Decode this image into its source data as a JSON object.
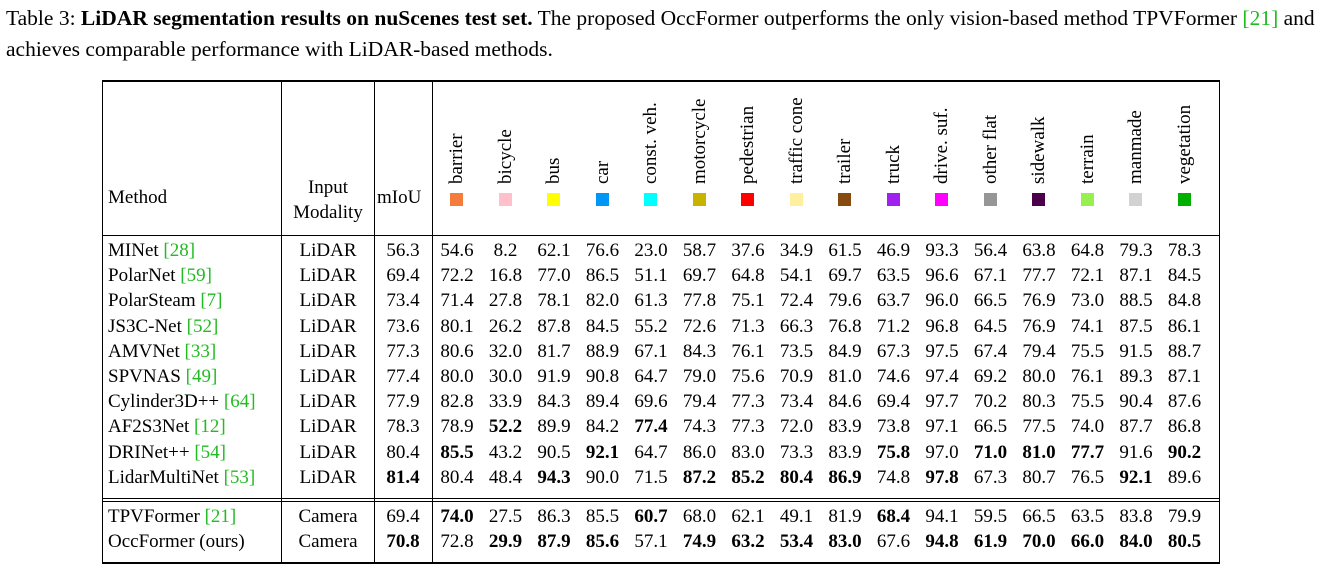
{
  "caption": {
    "label": "Table 3:",
    "title": "LiDAR segmentation results on nuScenes test set.",
    "text_a": "The proposed OccFormer outperforms the only vision-based method TPVFormer ",
    "cite_a": "[21]",
    "text_b": " and achieves comparable performance with LiDAR-based methods."
  },
  "header": {
    "method": "Method",
    "input_modality_line1": "Input",
    "input_modality_line2": "Modality",
    "miou": "mIoU"
  },
  "classes": [
    {
      "name": "barrier",
      "color": "#f47c3c"
    },
    {
      "name": "bicycle",
      "color": "#ffc0cb"
    },
    {
      "name": "bus",
      "color": "#ffff00"
    },
    {
      "name": "car",
      "color": "#0096f5"
    },
    {
      "name": "const. veh.",
      "color": "#00ffff"
    },
    {
      "name": "motorcycle",
      "color": "#c8b400"
    },
    {
      "name": "pedestrian",
      "color": "#ff0000"
    },
    {
      "name": "traffic cone",
      "color": "#fff0a0"
    },
    {
      "name": "trailer",
      "color": "#874a0f"
    },
    {
      "name": "truck",
      "color": "#a020f0"
    },
    {
      "name": "drive. suf.",
      "color": "#ff00ff"
    },
    {
      "name": "other flat",
      "color": "#969696"
    },
    {
      "name": "sidewalk",
      "color": "#4b004b"
    },
    {
      "name": "terrain",
      "color": "#96f050"
    },
    {
      "name": "manmade",
      "color": "#d2d2d2"
    },
    {
      "name": "vegetation",
      "color": "#00af00"
    }
  ],
  "lidar_rows": [
    {
      "method": "MINet ",
      "cite": "[28]",
      "input": "LiDAR",
      "miou": "56.3",
      "miou_bold": false,
      "values": [
        "54.6",
        "8.2",
        "62.1",
        "76.6",
        "23.0",
        "58.7",
        "37.6",
        "34.9",
        "61.5",
        "46.9",
        "93.3",
        "56.4",
        "63.8",
        "64.8",
        "79.3",
        "78.3"
      ],
      "bold": []
    },
    {
      "method": "PolarNet ",
      "cite": "[59]",
      "input": "LiDAR",
      "miou": "69.4",
      "miou_bold": false,
      "values": [
        "72.2",
        "16.8",
        "77.0",
        "86.5",
        "51.1",
        "69.7",
        "64.8",
        "54.1",
        "69.7",
        "63.5",
        "96.6",
        "67.1",
        "77.7",
        "72.1",
        "87.1",
        "84.5"
      ],
      "bold": []
    },
    {
      "method": "PolarSteam ",
      "cite": "[7]",
      "input": "LiDAR",
      "miou": "73.4",
      "miou_bold": false,
      "values": [
        "71.4",
        "27.8",
        "78.1",
        "82.0",
        "61.3",
        "77.8",
        "75.1",
        "72.4",
        "79.6",
        "63.7",
        "96.0",
        "66.5",
        "76.9",
        "73.0",
        "88.5",
        "84.8"
      ],
      "bold": []
    },
    {
      "method": "JS3C-Net ",
      "cite": "[52]",
      "input": "LiDAR",
      "miou": "73.6",
      "miou_bold": false,
      "values": [
        "80.1",
        "26.2",
        "87.8",
        "84.5",
        "55.2",
        "72.6",
        "71.3",
        "66.3",
        "76.8",
        "71.2",
        "96.8",
        "64.5",
        "76.9",
        "74.1",
        "87.5",
        "86.1"
      ],
      "bold": []
    },
    {
      "method": "AMVNet ",
      "cite": "[33]",
      "input": "LiDAR",
      "miou": "77.3",
      "miou_bold": false,
      "values": [
        "80.6",
        "32.0",
        "81.7",
        "88.9",
        "67.1",
        "84.3",
        "76.1",
        "73.5",
        "84.9",
        "67.3",
        "97.5",
        "67.4",
        "79.4",
        "75.5",
        "91.5",
        "88.7"
      ],
      "bold": []
    },
    {
      "method": "SPVNAS ",
      "cite": "[49]",
      "input": "LiDAR",
      "miou": "77.4",
      "miou_bold": false,
      "values": [
        "80.0",
        "30.0",
        "91.9",
        "90.8",
        "64.7",
        "79.0",
        "75.6",
        "70.9",
        "81.0",
        "74.6",
        "97.4",
        "69.2",
        "80.0",
        "76.1",
        "89.3",
        "87.1"
      ],
      "bold": []
    },
    {
      "method": "Cylinder3D++ ",
      "cite": "[64]",
      "input": "LiDAR",
      "miou": "77.9",
      "miou_bold": false,
      "values": [
        "82.8",
        "33.9",
        "84.3",
        "89.4",
        "69.6",
        "79.4",
        "77.3",
        "73.4",
        "84.6",
        "69.4",
        "97.7",
        "70.2",
        "80.3",
        "75.5",
        "90.4",
        "87.6"
      ],
      "bold": []
    },
    {
      "method": "AF2S3Net ",
      "cite": "[12]",
      "input": "LiDAR",
      "miou": "78.3",
      "miou_bold": false,
      "values": [
        "78.9",
        "52.2",
        "89.9",
        "84.2",
        "77.4",
        "74.3",
        "77.3",
        "72.0",
        "83.9",
        "73.8",
        "97.1",
        "66.5",
        "77.5",
        "74.0",
        "87.7",
        "86.8"
      ],
      "bold": [
        1,
        4
      ]
    },
    {
      "method": "DRINet++ ",
      "cite": "[54]",
      "input": "LiDAR",
      "miou": "80.4",
      "miou_bold": false,
      "values": [
        "85.5",
        "43.2",
        "90.5",
        "92.1",
        "64.7",
        "86.0",
        "83.0",
        "73.3",
        "83.9",
        "75.8",
        "97.0",
        "71.0",
        "81.0",
        "77.7",
        "91.6",
        "90.2"
      ],
      "bold": [
        0,
        3,
        9,
        11,
        12,
        13,
        15
      ]
    },
    {
      "method": "LidarMultiNet ",
      "cite": "[53]",
      "input": "LiDAR",
      "miou": "81.4",
      "miou_bold": true,
      "values": [
        "80.4",
        "48.4",
        "94.3",
        "90.0",
        "71.5",
        "87.2",
        "85.2",
        "80.4",
        "86.9",
        "74.8",
        "97.8",
        "67.3",
        "80.7",
        "76.5",
        "92.1",
        "89.6"
      ],
      "bold": [
        2,
        5,
        6,
        7,
        8,
        10,
        14
      ]
    }
  ],
  "camera_rows": [
    {
      "method": "TPVFormer ",
      "cite": "[21]",
      "input": "Camera",
      "miou": "69.4",
      "miou_bold": false,
      "values": [
        "74.0",
        "27.5",
        "86.3",
        "85.5",
        "60.7",
        "68.0",
        "62.1",
        "49.1",
        "81.9",
        "68.4",
        "94.1",
        "59.5",
        "66.5",
        "63.5",
        "83.8",
        "79.9"
      ],
      "bold": [
        0,
        4,
        9
      ]
    },
    {
      "method": "OccFormer (ours)",
      "cite": "",
      "input": "Camera",
      "miou": "70.8",
      "miou_bold": true,
      "values": [
        "72.8",
        "29.9",
        "87.9",
        "85.6",
        "57.1",
        "74.9",
        "63.2",
        "53.4",
        "83.0",
        "67.6",
        "94.8",
        "61.9",
        "70.0",
        "66.0",
        "84.0",
        "80.5"
      ],
      "bold": [
        1,
        2,
        3,
        5,
        6,
        7,
        8,
        10,
        11,
        12,
        13,
        14,
        15
      ]
    }
  ]
}
